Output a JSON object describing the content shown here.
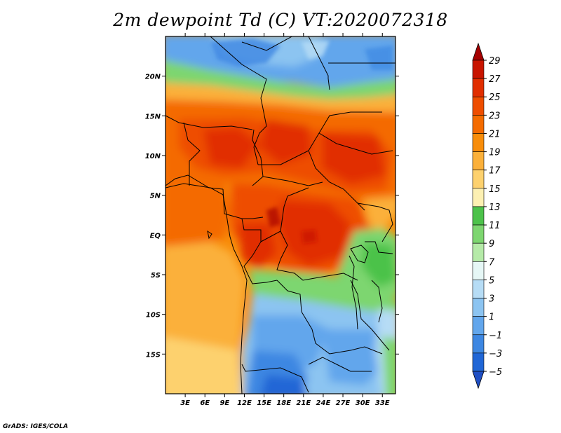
{
  "title": "2m dewpoint Td (C) VT:2020072318",
  "credit": "GrADS: IGES/COLA",
  "map": {
    "lon_range": [
      0,
      35
    ],
    "lat_range": [
      -20,
      25
    ],
    "lon_ticks": [
      {
        "value": 3,
        "label": "3E"
      },
      {
        "value": 6,
        "label": "6E"
      },
      {
        "value": 9,
        "label": "9E"
      },
      {
        "value": 12,
        "label": "12E"
      },
      {
        "value": 15,
        "label": "15E"
      },
      {
        "value": 18,
        "label": "18E"
      },
      {
        "value": 21,
        "label": "21E"
      },
      {
        "value": 24,
        "label": "24E"
      },
      {
        "value": 27,
        "label": "27E"
      },
      {
        "value": 30,
        "label": "30E"
      },
      {
        "value": 33,
        "label": "33E"
      }
    ],
    "lat_ticks": [
      {
        "value": 20,
        "label": "20N"
      },
      {
        "value": 15,
        "label": "15N"
      },
      {
        "value": 10,
        "label": "10N"
      },
      {
        "value": 5,
        "label": "5N"
      },
      {
        "value": 0,
        "label": "EQ"
      },
      {
        "value": -5,
        "label": "5S"
      },
      {
        "value": -10,
        "label": "10S"
      },
      {
        "value": -15,
        "label": "15S"
      }
    ]
  },
  "colorbar": {
    "levels": [
      "29",
      "27",
      "25",
      "23",
      "21",
      "19",
      "17",
      "15",
      "13",
      "11",
      "9",
      "7",
      "5",
      "3",
      "1",
      "−1",
      "−3",
      "−5"
    ],
    "colors": [
      "#a50000",
      "#c81400",
      "#e12e00",
      "#ee4d00",
      "#f46b00",
      "#f88d0a",
      "#fbb03a",
      "#fdd16e",
      "#fdf0b2",
      "#4cc24a",
      "#7dd670",
      "#b5eaa8",
      "#e6f7f6",
      "#b6dcf5",
      "#8cc4f1",
      "#62a6ec",
      "#3d87e2",
      "#2066d6"
    ],
    "top_color": "#a50000",
    "bottom_color": "#1f4fc4"
  }
}
